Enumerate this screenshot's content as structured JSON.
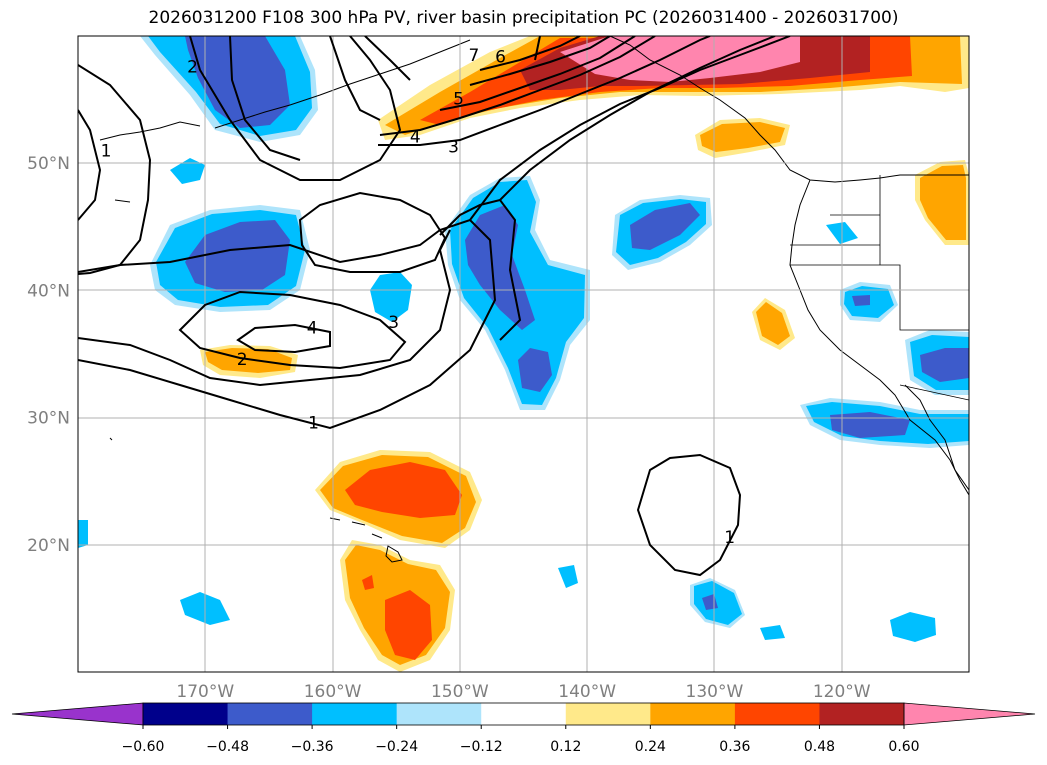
{
  "title": "2026031200 F108 300 hPa PV, river basin precipitation PC (2026031400 - 2026031700)",
  "map": {
    "lon_range": [
      -180,
      -110
    ],
    "lat_range": [
      10,
      60
    ],
    "lat_labels": [
      "50°N",
      "40°N",
      "30°N",
      "20°N"
    ],
    "lat_values": [
      50,
      40,
      30,
      20
    ],
    "lon_labels": [
      "170°W",
      "160°W",
      "150°W",
      "140°W",
      "130°W",
      "120°W"
    ],
    "lon_values": [
      -170,
      -160,
      -150,
      -140,
      -130,
      -120
    ],
    "gridlines": true
  },
  "colorbar": {
    "levels": [
      "-0.60",
      "-0.48",
      "-0.36",
      "-0.24",
      "-0.12",
      "0.12",
      "0.24",
      "0.36",
      "0.48",
      "0.60"
    ],
    "colors": [
      "#9933cc",
      "#00008b",
      "#3d5bcb",
      "#00bfff",
      "#aee4fb",
      "#ffffff",
      "#ffe98a",
      "#ffa500",
      "#ff4500",
      "#b22222",
      "#ff85ae"
    ],
    "extend": "both"
  },
  "pv_contour_labels": [
    {
      "text": "1",
      "lon": -161.5,
      "lat": 29.6
    },
    {
      "text": "2",
      "lon": -167.1,
      "lat": 34.6
    },
    {
      "text": "3",
      "lon": -155.2,
      "lat": 37.5
    },
    {
      "text": "4",
      "lon": -161.6,
      "lat": 37.1
    },
    {
      "text": "1",
      "lon": -128.8,
      "lat": 20.6
    },
    {
      "text": "3",
      "lon": -150.5,
      "lat": 51.3
    },
    {
      "text": "4",
      "lon": -153.5,
      "lat": 52.1
    },
    {
      "text": "5",
      "lon": -150.1,
      "lat": 55.1
    },
    {
      "text": "6",
      "lon": -146.8,
      "lat": 58.4
    },
    {
      "text": "7",
      "lon": -148.9,
      "lat": 58.5
    },
    {
      "text": "2",
      "lon": -171.0,
      "lat": 57.6
    },
    {
      "text": "1",
      "lon": -177.8,
      "lat": 51.0
    }
  ]
}
